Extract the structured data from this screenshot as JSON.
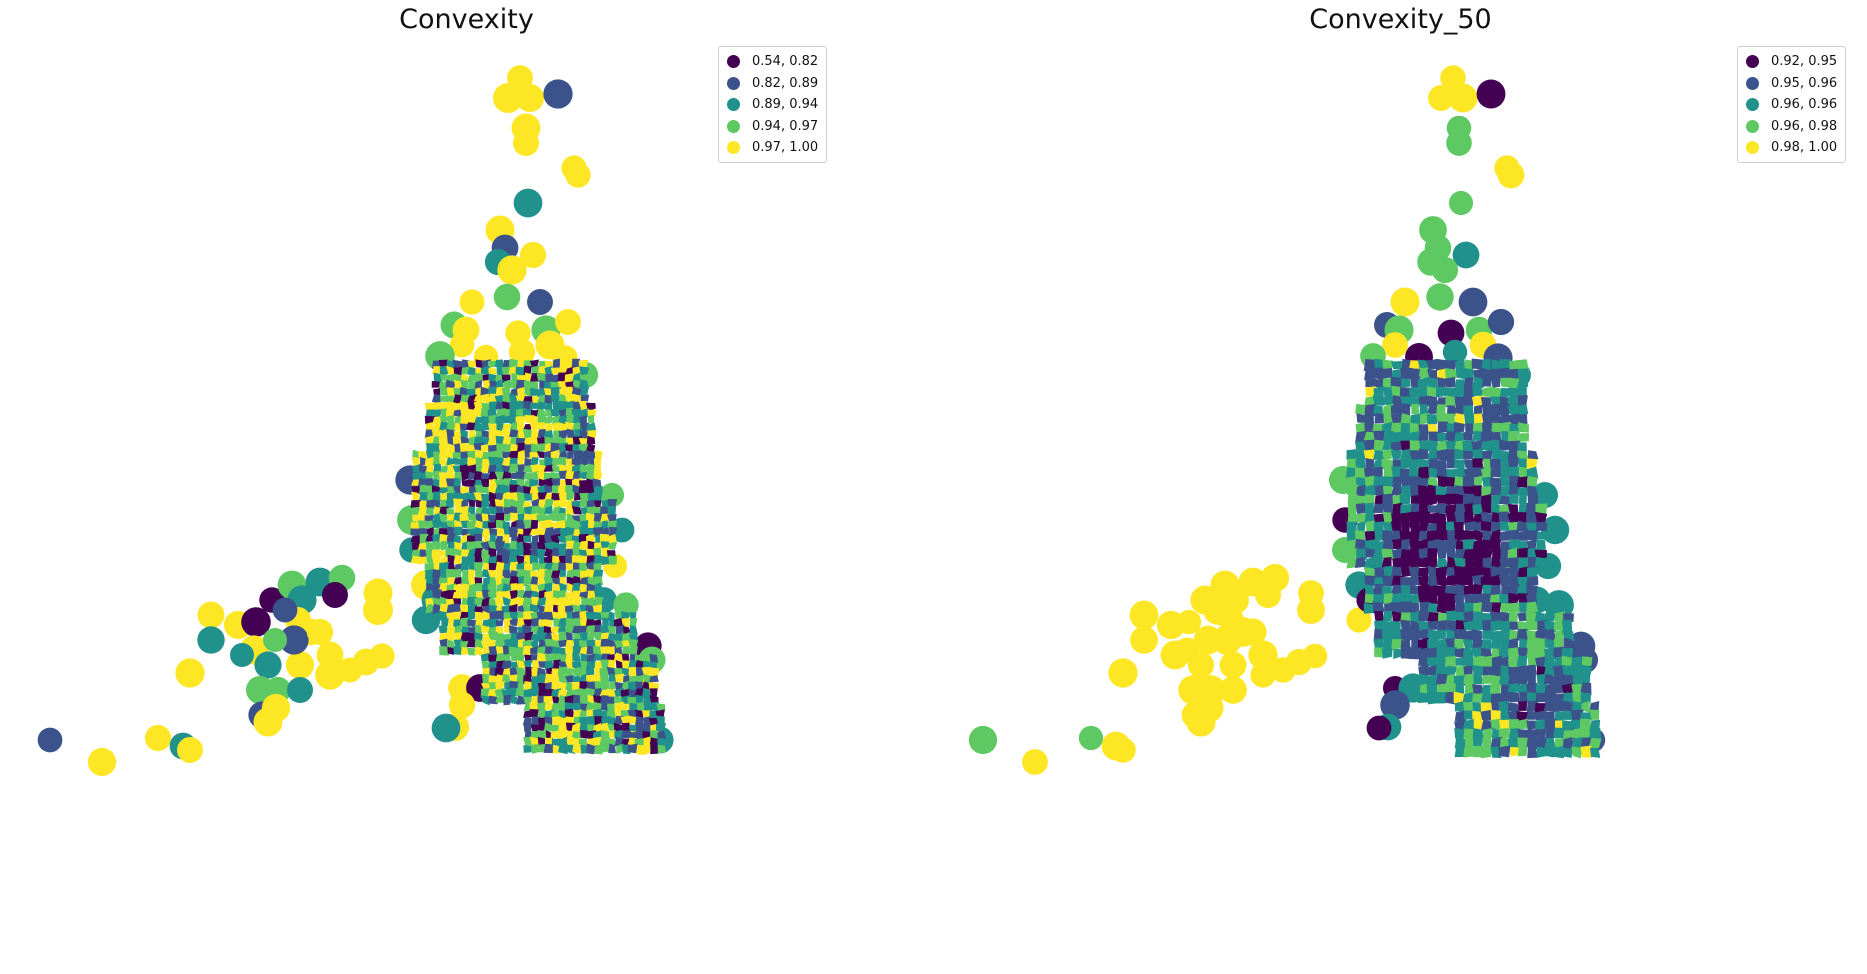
{
  "colors": {
    "c1": "#440154",
    "c2": "#3b528b",
    "c3": "#21918c",
    "c4": "#5ec962",
    "c5": "#fde725"
  },
  "panels": [
    {
      "title": "Convexity",
      "legend": [
        {
          "label": "0.54, 0.82",
          "color": "#440154"
        },
        {
          "label": "0.82, 0.89",
          "color": "#3b528b"
        },
        {
          "label": "0.89, 0.94",
          "color": "#21918c"
        },
        {
          "label": "0.94, 0.97",
          "color": "#5ec962"
        },
        {
          "label": "0.97, 1.00",
          "color": "#fde725"
        }
      ]
    },
    {
      "title": "Convexity_50",
      "legend": [
        {
          "label": "0.92, 0.95",
          "color": "#440154"
        },
        {
          "label": "0.95, 0.96",
          "color": "#3b528b"
        },
        {
          "label": "0.96, 0.96",
          "color": "#21918c"
        },
        {
          "label": "0.96, 0.98",
          "color": "#5ec962"
        },
        {
          "label": "0.98, 1.00",
          "color": "#fde725"
        }
      ]
    }
  ]
}
